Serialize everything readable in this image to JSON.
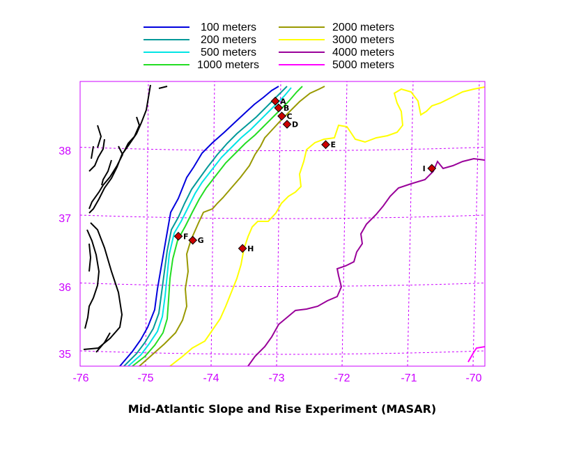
{
  "map": {
    "title": "Mid-Atlantic Slope and Rise Experiment (MASAR)",
    "frame_color": "#cc00ff",
    "grid_color": "#cc00ff",
    "coastline_color": "#000000",
    "lon_ticks": [
      "-76",
      "-75",
      "-74",
      "-73",
      "-72",
      "-71",
      "-70"
    ],
    "lat_ticks": [
      "35",
      "36",
      "37",
      "38"
    ]
  },
  "legend": {
    "items": [
      {
        "label": "100 meters",
        "color": "#0000dd"
      },
      {
        "label": "200 meters",
        "color": "#009999"
      },
      {
        "label": "500 meters",
        "color": "#00e5e5"
      },
      {
        "label": "1000 meters",
        "color": "#22dd22"
      },
      {
        "label": "2000 meters",
        "color": "#999900"
      },
      {
        "label": "3000 meters",
        "color": "#ffff00"
      },
      {
        "label": "4000 meters",
        "color": "#990099"
      },
      {
        "label": "5000 meters",
        "color": "#ff00ff"
      }
    ]
  },
  "stations": [
    {
      "label": "A",
      "lon": -73.02,
      "lat": 38.72
    },
    {
      "label": "B",
      "lon": -72.97,
      "lat": 38.62
    },
    {
      "label": "C",
      "lon": -72.92,
      "lat": 38.5
    },
    {
      "label": "D",
      "lon": -72.84,
      "lat": 38.38
    },
    {
      "label": "E",
      "lon": -72.25,
      "lat": 38.08
    },
    {
      "label": "F",
      "lon": -74.5,
      "lat": 36.73
    },
    {
      "label": "G",
      "lon": -74.28,
      "lat": 36.67
    },
    {
      "label": "H",
      "lon": -73.52,
      "lat": 36.55
    },
    {
      "label": "I",
      "lon": -70.63,
      "lat": 37.73
    }
  ],
  "station_marker_color": "#cc0000"
}
